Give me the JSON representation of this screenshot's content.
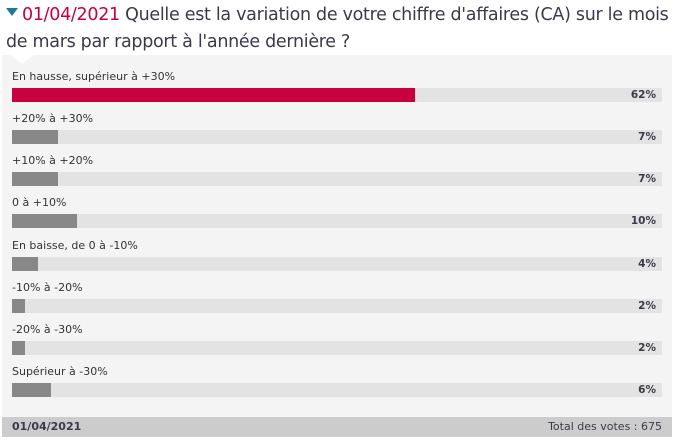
{
  "header": {
    "date": "01/04/2021",
    "question": "Quelle est la variation de votre chiffre d'affaires (CA) sur le mois de mars par rapport à l'année dernière ?"
  },
  "options": [
    {
      "label": "En hausse, supérieur à +30%",
      "pct_label": "62%",
      "value": 62,
      "highlight": true
    },
    {
      "label": "+20% à +30%",
      "pct_label": "7%",
      "value": 7,
      "highlight": false
    },
    {
      "label": "+10% à +20%",
      "pct_label": "7%",
      "value": 7,
      "highlight": false
    },
    {
      "label": "0 à +10%",
      "pct_label": "10%",
      "value": 10,
      "highlight": false
    },
    {
      "label": "En baisse, de 0 à -10%",
      "pct_label": "4%",
      "value": 4,
      "highlight": false
    },
    {
      "label": "-10% à -20%",
      "pct_label": "2%",
      "value": 2,
      "highlight": false
    },
    {
      "label": "-20% à -30%",
      "pct_label": "2%",
      "value": 2,
      "highlight": false
    },
    {
      "label": "Supérieur à -30%",
      "pct_label": "6%",
      "value": 6,
      "highlight": false
    }
  ],
  "footer": {
    "date": "01/04/2021",
    "total": "Total des votes : 675"
  },
  "colors": {
    "accent": "#c8003f",
    "bar": "#888888",
    "track": "#e3e3e3",
    "panel": "#f4f4f4",
    "footer": "#cccccc",
    "toggle": "#1f7a99"
  },
  "chart_data": {
    "type": "bar",
    "orientation": "horizontal",
    "title": "01/04/2021 Quelle est la variation de votre chiffre d'affaires (CA) sur le mois de mars par rapport à l'année dernière ?",
    "categories": [
      "En hausse, supérieur à +30%",
      "+20% à +30%",
      "+10% à +20%",
      "0 à +10%",
      "En baisse, de 0 à -10%",
      "-10% à -20%",
      "-20% à -30%",
      "Supérieur à -30%"
    ],
    "values": [
      62,
      7,
      7,
      10,
      4,
      2,
      2,
      6
    ],
    "unit": "%",
    "xlim": [
      0,
      100
    ],
    "total_votes": 675,
    "xlabel": "",
    "ylabel": "",
    "grid": false,
    "legend": null
  }
}
